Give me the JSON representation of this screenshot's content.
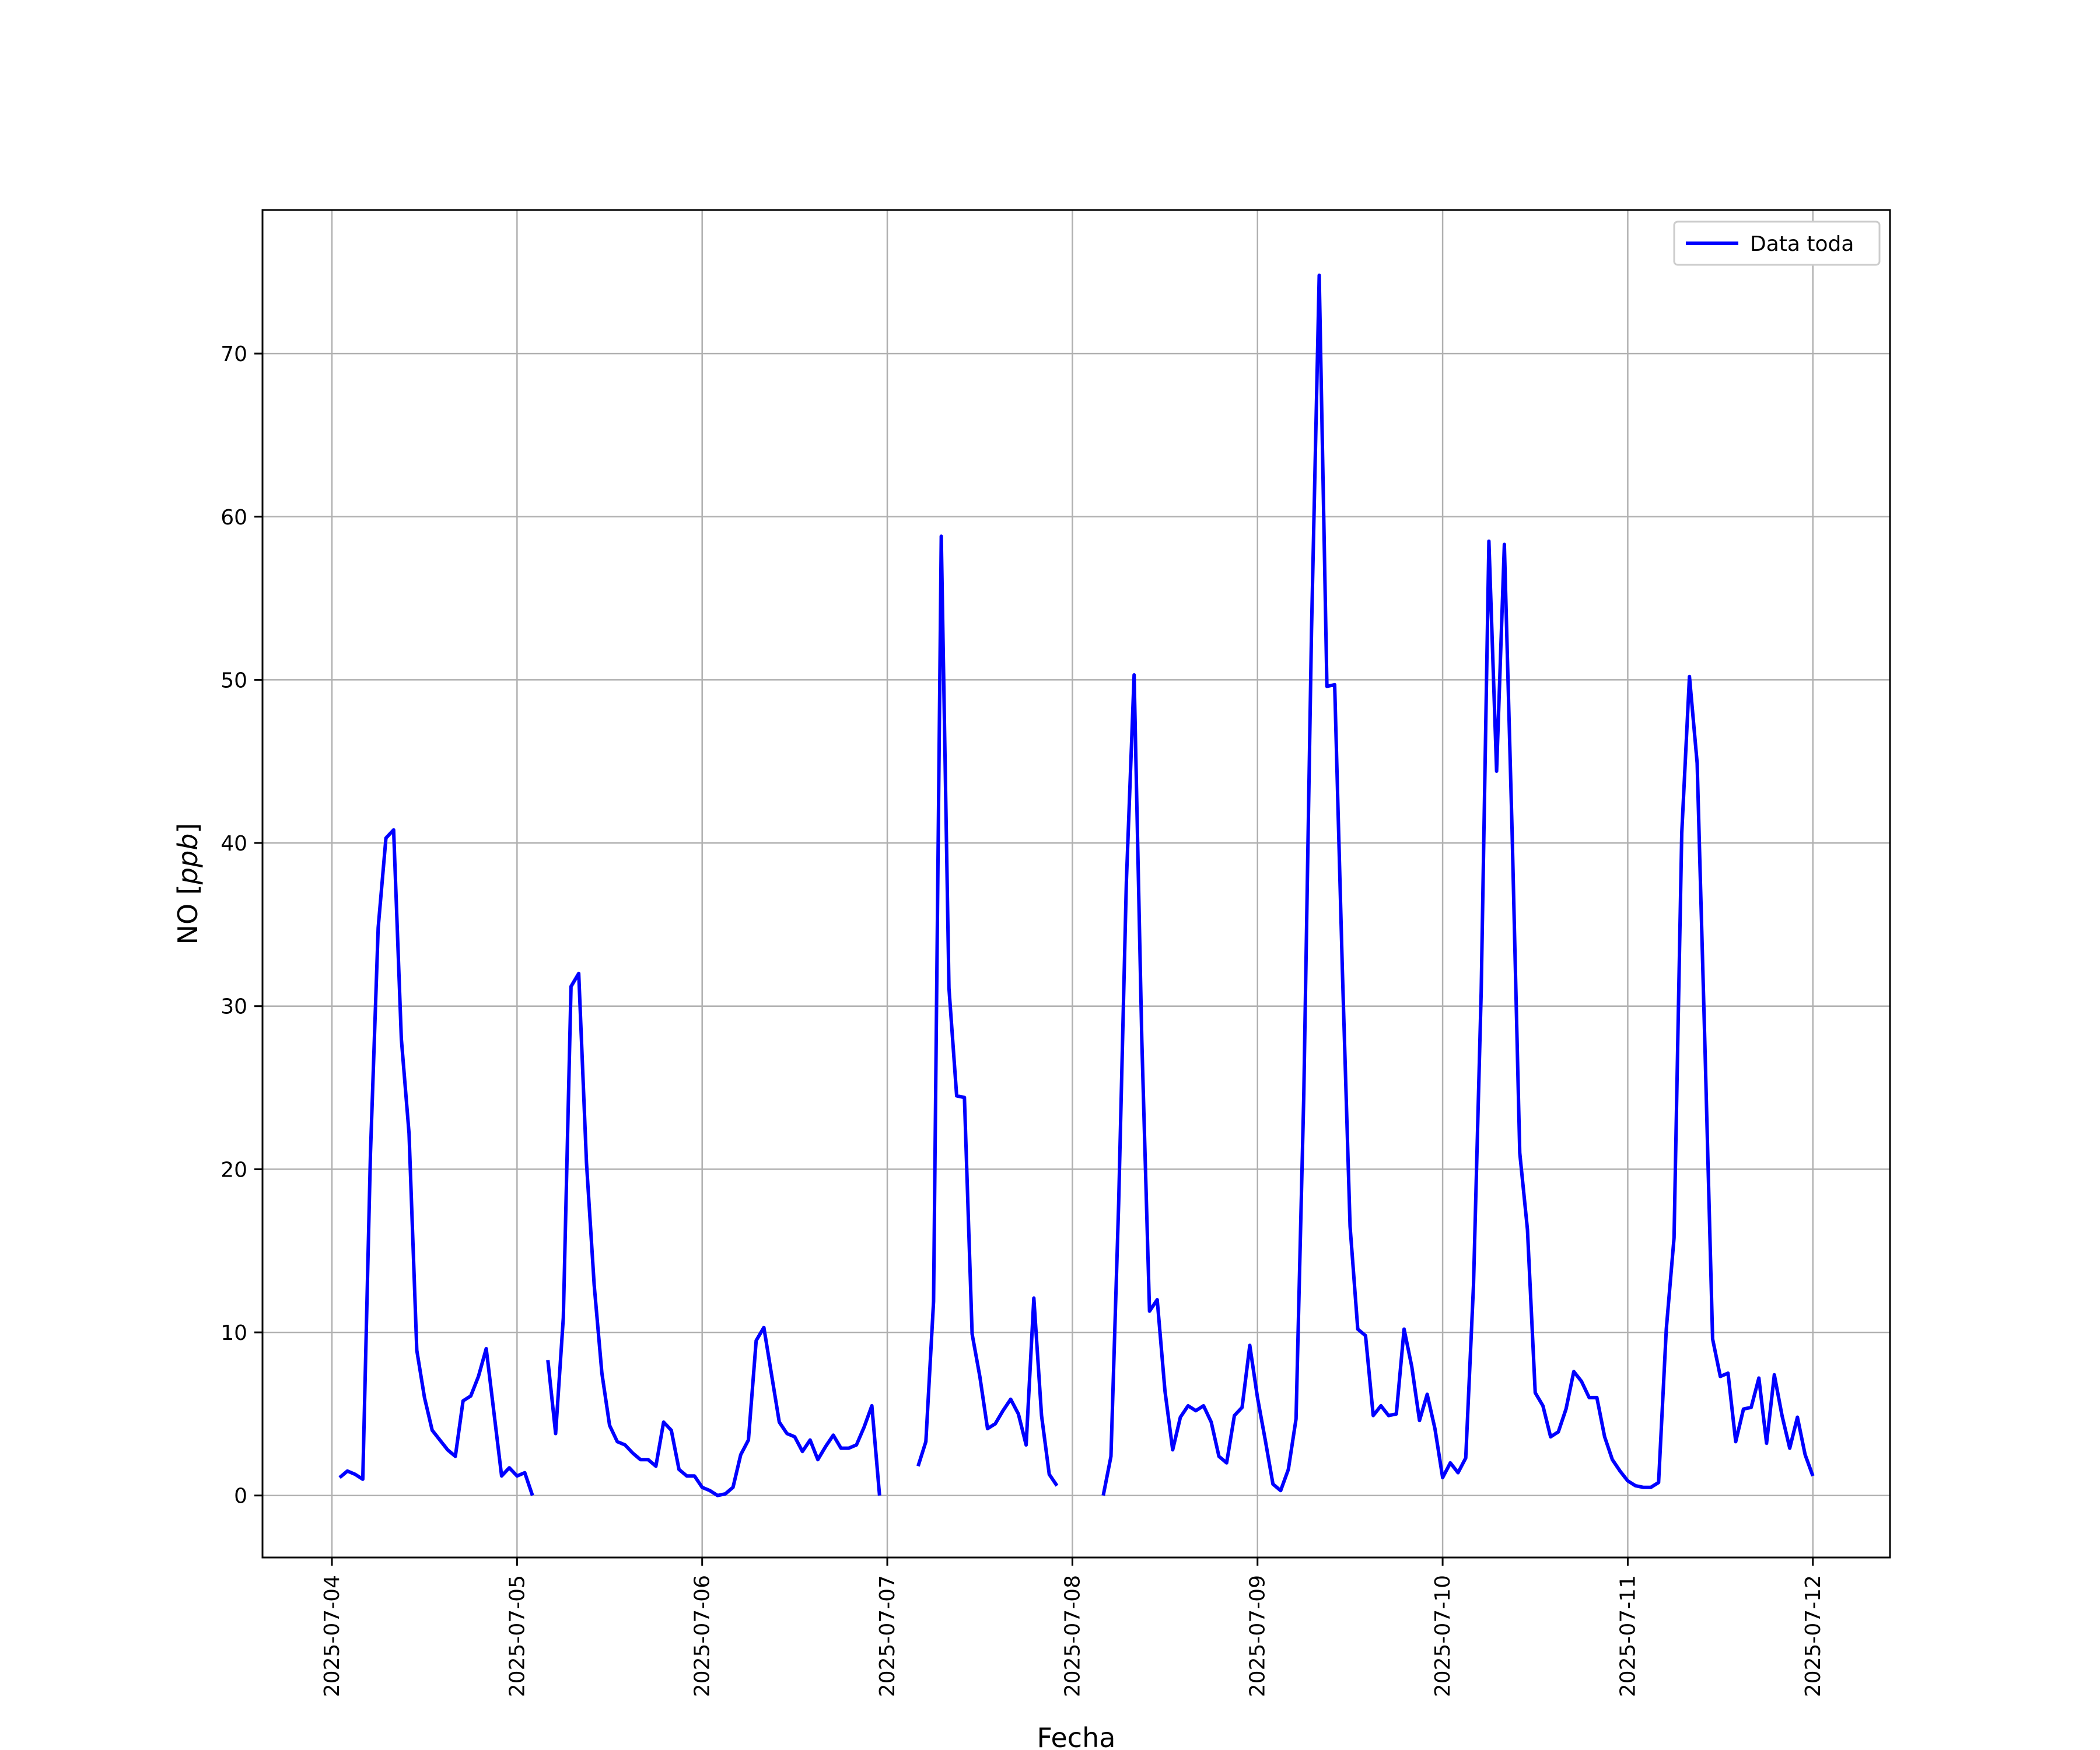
{
  "chart_data": {
    "type": "line",
    "xlabel": "Fecha",
    "ylabel_main": "NO [",
    "ylabel_unit": "ppb",
    "ylabel_close": "]",
    "xlim": [
      "2025-07-03T15:00",
      "2025-07-12T10:00"
    ],
    "ylim": [
      -3.8,
      78.8
    ],
    "x_ticks": [
      "2025-07-04",
      "2025-07-05",
      "2025-07-06",
      "2025-07-07",
      "2025-07-08",
      "2025-07-09",
      "2025-07-10",
      "2025-07-11",
      "2025-07-12"
    ],
    "y_ticks": [
      0,
      10,
      20,
      30,
      40,
      50,
      60,
      70
    ],
    "grid": true,
    "legend_position": "top-right",
    "line_color": "#0000ff",
    "series": [
      {
        "name": "Data toda",
        "points": [
          [
            "2025-07-04T01:00",
            1.1
          ],
          [
            "2025-07-04T02:00",
            1.5
          ],
          [
            "2025-07-04T03:00",
            1.3
          ],
          [
            "2025-07-04T04:00",
            1.0
          ],
          [
            "2025-07-04T05:00",
            21.0
          ],
          [
            "2025-07-04T06:00",
            34.8
          ],
          [
            "2025-07-04T07:00",
            40.3
          ],
          [
            "2025-07-04T08:00",
            40.8
          ],
          [
            "2025-07-04T09:00",
            28.0
          ],
          [
            "2025-07-04T10:00",
            22.2
          ],
          [
            "2025-07-04T11:00",
            8.9
          ],
          [
            "2025-07-04T12:00",
            6.0
          ],
          [
            "2025-07-04T13:00",
            4.0
          ],
          [
            "2025-07-04T14:00",
            3.4
          ],
          [
            "2025-07-04T15:00",
            2.8
          ],
          [
            "2025-07-04T16:00",
            2.4
          ],
          [
            "2025-07-04T17:00",
            5.8
          ],
          [
            "2025-07-04T18:00",
            6.1
          ],
          [
            "2025-07-04T19:00",
            7.3
          ],
          [
            "2025-07-04T20:00",
            9.0
          ],
          [
            "2025-07-04T21:00",
            5.1
          ],
          [
            "2025-07-04T22:00",
            1.2
          ],
          [
            "2025-07-04T23:00",
            1.7
          ],
          [
            "2025-07-05T00:00",
            1.2
          ],
          [
            "2025-07-05T01:00",
            1.4
          ],
          [
            "2025-07-05T02:00",
            0.0
          ],
          null,
          [
            "2025-07-05T04:00",
            8.3
          ],
          [
            "2025-07-05T05:00",
            3.8
          ],
          [
            "2025-07-05T06:00",
            10.9
          ],
          [
            "2025-07-05T07:00",
            31.2
          ],
          [
            "2025-07-05T08:00",
            32.0
          ],
          [
            "2025-07-05T09:00",
            20.4
          ],
          [
            "2025-07-05T10:00",
            12.9
          ],
          [
            "2025-07-05T11:00",
            7.5
          ],
          [
            "2025-07-05T12:00",
            4.3
          ],
          [
            "2025-07-05T13:00",
            3.3
          ],
          [
            "2025-07-05T14:00",
            3.1
          ],
          [
            "2025-07-05T15:00",
            2.6
          ],
          [
            "2025-07-05T16:00",
            2.2
          ],
          [
            "2025-07-05T17:00",
            2.2
          ],
          [
            "2025-07-05T18:00",
            1.8
          ],
          [
            "2025-07-05T19:00",
            4.5
          ],
          [
            "2025-07-05T20:00",
            4.0
          ],
          [
            "2025-07-05T21:00",
            1.6
          ],
          [
            "2025-07-05T22:00",
            1.2
          ],
          [
            "2025-07-05T23:00",
            1.2
          ],
          [
            "2025-07-06T00:00",
            0.5
          ],
          [
            "2025-07-06T01:00",
            0.3
          ],
          [
            "2025-07-06T02:00",
            0.0
          ],
          [
            "2025-07-06T03:00",
            0.1
          ],
          [
            "2025-07-06T04:00",
            0.5
          ],
          [
            "2025-07-06T05:00",
            2.5
          ],
          [
            "2025-07-06T06:00",
            3.4
          ],
          [
            "2025-07-06T07:00",
            9.5
          ],
          [
            "2025-07-06T08:00",
            10.3
          ],
          [
            "2025-07-06T09:00",
            7.4
          ],
          [
            "2025-07-06T10:00",
            4.5
          ],
          [
            "2025-07-06T11:00",
            3.8
          ],
          [
            "2025-07-06T12:00",
            3.6
          ],
          [
            "2025-07-06T13:00",
            2.7
          ],
          [
            "2025-07-06T14:00",
            3.4
          ],
          [
            "2025-07-06T15:00",
            2.2
          ],
          [
            "2025-07-06T16:00",
            3.0
          ],
          [
            "2025-07-06T17:00",
            3.7
          ],
          [
            "2025-07-06T18:00",
            2.9
          ],
          [
            "2025-07-06T19:00",
            2.9
          ],
          [
            "2025-07-06T20:00",
            3.1
          ],
          [
            "2025-07-06T21:00",
            4.2
          ],
          [
            "2025-07-06T22:00",
            5.5
          ],
          [
            "2025-07-06T23:00",
            0.0
          ],
          null,
          [
            "2025-07-07T04:00",
            1.8
          ],
          [
            "2025-07-07T05:00",
            3.3
          ],
          [
            "2025-07-07T06:00",
            11.9
          ],
          [
            "2025-07-07T07:00",
            58.8
          ],
          [
            "2025-07-07T08:00",
            31.1
          ],
          [
            "2025-07-07T09:00",
            24.5
          ],
          [
            "2025-07-07T10:00",
            24.4
          ],
          [
            "2025-07-07T11:00",
            9.9
          ],
          [
            "2025-07-07T12:00",
            7.3
          ],
          [
            "2025-07-07T13:00",
            4.1
          ],
          [
            "2025-07-07T14:00",
            4.4
          ],
          [
            "2025-07-07T15:00",
            5.2
          ],
          [
            "2025-07-07T16:00",
            5.9
          ],
          [
            "2025-07-07T17:00",
            5.0
          ],
          [
            "2025-07-07T18:00",
            3.1
          ],
          [
            "2025-07-07T19:00",
            12.1
          ],
          [
            "2025-07-07T20:00",
            4.9
          ],
          [
            "2025-07-07T21:00",
            1.3
          ],
          [
            "2025-07-07T22:00",
            0.6
          ],
          null,
          [
            "2025-07-08T04:00",
            0.0
          ],
          [
            "2025-07-08T05:00",
            2.4
          ],
          [
            "2025-07-08T06:00",
            17.9
          ],
          [
            "2025-07-08T07:00",
            37.6
          ],
          [
            "2025-07-08T08:00",
            50.3
          ],
          [
            "2025-07-08T09:00",
            27.9
          ],
          [
            "2025-07-08T10:00",
            11.3
          ],
          [
            "2025-07-08T11:00",
            12.0
          ],
          [
            "2025-07-08T12:00",
            6.4
          ],
          [
            "2025-07-08T13:00",
            2.8
          ],
          [
            "2025-07-08T14:00",
            4.8
          ],
          [
            "2025-07-08T15:00",
            5.5
          ],
          [
            "2025-07-08T16:00",
            5.2
          ],
          [
            "2025-07-08T17:00",
            5.5
          ],
          [
            "2025-07-08T18:00",
            4.5
          ],
          [
            "2025-07-08T19:00",
            2.4
          ],
          [
            "2025-07-08T20:00",
            2.0
          ],
          [
            "2025-07-08T21:00",
            4.9
          ],
          [
            "2025-07-08T22:00",
            5.4
          ],
          [
            "2025-07-08T23:00",
            9.2
          ],
          [
            "2025-07-09T00:00",
            6.0
          ],
          [
            "2025-07-09T01:00",
            3.4
          ],
          [
            "2025-07-09T02:00",
            0.7
          ],
          [
            "2025-07-09T03:00",
            0.3
          ],
          [
            "2025-07-09T04:00",
            1.6
          ],
          [
            "2025-07-09T05:00",
            4.7
          ],
          [
            "2025-07-09T06:00",
            24.6
          ],
          [
            "2025-07-09T07:00",
            53.0
          ],
          [
            "2025-07-09T08:00",
            74.8
          ],
          [
            "2025-07-09T09:00",
            49.6
          ],
          [
            "2025-07-09T10:00",
            49.7
          ],
          [
            "2025-07-09T11:00",
            32.2
          ],
          [
            "2025-07-09T12:00",
            16.5
          ],
          [
            "2025-07-09T13:00",
            10.2
          ],
          [
            "2025-07-09T14:00",
            9.8
          ],
          [
            "2025-07-09T15:00",
            4.9
          ],
          [
            "2025-07-09T16:00",
            5.5
          ],
          [
            "2025-07-09T17:00",
            4.9
          ],
          [
            "2025-07-09T18:00",
            5.0
          ],
          [
            "2025-07-09T19:00",
            10.2
          ],
          [
            "2025-07-09T20:00",
            7.9
          ],
          [
            "2025-07-09T21:00",
            4.6
          ],
          [
            "2025-07-09T22:00",
            6.2
          ],
          [
            "2025-07-09T23:00",
            4.1
          ],
          [
            "2025-07-10T00:00",
            1.1
          ],
          [
            "2025-07-10T01:00",
            2.0
          ],
          [
            "2025-07-10T02:00",
            1.4
          ],
          [
            "2025-07-10T03:00",
            2.3
          ],
          [
            "2025-07-10T04:00",
            12.9
          ],
          [
            "2025-07-10T05:00",
            30.9
          ],
          [
            "2025-07-10T06:00",
            58.5
          ],
          [
            "2025-07-10T07:00",
            44.4
          ],
          [
            "2025-07-10T08:00",
            58.3
          ],
          [
            "2025-07-10T09:00",
            40.8
          ],
          [
            "2025-07-10T10:00",
            21.0
          ],
          [
            "2025-07-10T11:00",
            16.3
          ],
          [
            "2025-07-10T12:00",
            6.3
          ],
          [
            "2025-07-10T13:00",
            5.5
          ],
          [
            "2025-07-10T14:00",
            3.6
          ],
          [
            "2025-07-10T15:00",
            3.9
          ],
          [
            "2025-07-10T16:00",
            5.3
          ],
          [
            "2025-07-10T17:00",
            7.6
          ],
          [
            "2025-07-10T18:00",
            7.0
          ],
          [
            "2025-07-10T19:00",
            6.0
          ],
          [
            "2025-07-10T20:00",
            6.0
          ],
          [
            "2025-07-10T21:00",
            3.6
          ],
          [
            "2025-07-10T22:00",
            2.2
          ],
          [
            "2025-07-10T23:00",
            1.5
          ],
          [
            "2025-07-11T00:00",
            0.9
          ],
          [
            "2025-07-11T01:00",
            0.6
          ],
          [
            "2025-07-11T02:00",
            0.5
          ],
          [
            "2025-07-11T03:00",
            0.5
          ],
          [
            "2025-07-11T04:00",
            0.8
          ],
          [
            "2025-07-11T05:00",
            10.2
          ],
          [
            "2025-07-11T06:00",
            15.8
          ],
          [
            "2025-07-11T07:00",
            40.6
          ],
          [
            "2025-07-11T08:00",
            50.2
          ],
          [
            "2025-07-11T09:00",
            44.9
          ],
          [
            "2025-07-11T10:00",
            27.6
          ],
          [
            "2025-07-11T11:00",
            9.6
          ],
          [
            "2025-07-11T12:00",
            7.3
          ],
          [
            "2025-07-11T13:00",
            7.5
          ],
          [
            "2025-07-11T14:00",
            3.3
          ],
          [
            "2025-07-11T15:00",
            5.3
          ],
          [
            "2025-07-11T16:00",
            5.4
          ],
          [
            "2025-07-11T17:00",
            7.2
          ],
          [
            "2025-07-11T18:00",
            3.2
          ],
          [
            "2025-07-11T19:00",
            7.4
          ],
          [
            "2025-07-11T20:00",
            4.9
          ],
          [
            "2025-07-11T21:00",
            2.9
          ],
          [
            "2025-07-11T22:00",
            4.8
          ],
          [
            "2025-07-11T23:00",
            2.5
          ],
          [
            "2025-07-12T00:00",
            1.2
          ]
        ]
      }
    ]
  }
}
